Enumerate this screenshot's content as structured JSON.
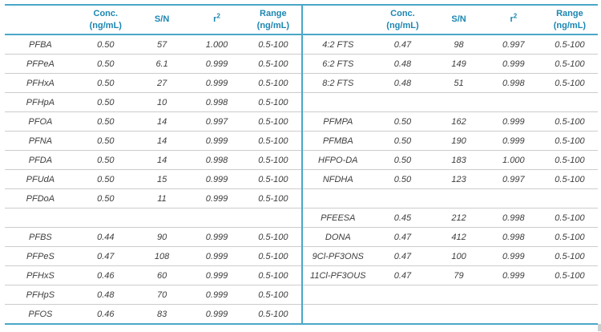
{
  "colors": {
    "accent_line": "#4aa7c8",
    "header_text": "#1c86b2",
    "row_line": "#cccccc",
    "body_text": "#3d3d3d"
  },
  "columns": [
    {
      "key": "compound",
      "label": ""
    },
    {
      "key": "conc",
      "label": "Conc.",
      "sub": "(ng/mL)"
    },
    {
      "key": "sn",
      "label": "S/N"
    },
    {
      "key": "r2",
      "label": "r",
      "sup": "2"
    },
    {
      "key": "range",
      "label": "Range",
      "sub": "(ng/mL)"
    }
  ],
  "left_table": {
    "rows": [
      [
        "PFBA",
        "0.50",
        "57",
        "1.000",
        "0.5-100"
      ],
      [
        "PFPeA",
        "0.50",
        "6.1",
        "0.999",
        "0.5-100"
      ],
      [
        "PFHxA",
        "0.50",
        "27",
        "0.999",
        "0.5-100"
      ],
      [
        "PFHpA",
        "0.50",
        "10",
        "0.998",
        "0.5-100"
      ],
      [
        "PFOA",
        "0.50",
        "14",
        "0.997",
        "0.5-100"
      ],
      [
        "PFNA",
        "0.50",
        "14",
        "0.999",
        "0.5-100"
      ],
      [
        "PFDA",
        "0.50",
        "14",
        "0.998",
        "0.5-100"
      ],
      [
        "PFUdA",
        "0.50",
        "15",
        "0.999",
        "0.5-100"
      ],
      [
        "PFDoA",
        "0.50",
        "11",
        "0.999",
        "0.5-100"
      ],
      [
        "",
        "",
        "",
        "",
        ""
      ],
      [
        "PFBS",
        "0.44",
        "90",
        "0.999",
        "0.5-100"
      ],
      [
        "PFPeS",
        "0.47",
        "108",
        "0.999",
        "0.5-100"
      ],
      [
        "PFHxS",
        "0.46",
        "60",
        "0.999",
        "0.5-100"
      ],
      [
        "PFHpS",
        "0.48",
        "70",
        "0.999",
        "0.5-100"
      ],
      [
        "PFOS",
        "0.46",
        "83",
        "0.999",
        "0.5-100"
      ]
    ]
  },
  "right_table": {
    "rows": [
      [
        "4:2 FTS",
        "0.47",
        "98",
        "0.997",
        "0.5-100"
      ],
      [
        "6:2 FTS",
        "0.48",
        "149",
        "0.999",
        "0.5-100"
      ],
      [
        "8:2 FTS",
        "0.48",
        "51",
        "0.998",
        "0.5-100"
      ],
      [
        "",
        "",
        "",
        "",
        ""
      ],
      [
        "PFMPA",
        "0.50",
        "162",
        "0.999",
        "0.5-100"
      ],
      [
        "PFMBA",
        "0.50",
        "190",
        "0.999",
        "0.5-100"
      ],
      [
        "HFPO-DA",
        "0.50",
        "183",
        "1.000",
        "0.5-100"
      ],
      [
        "NFDHA",
        "0.50",
        "123",
        "0.997",
        "0.5-100"
      ],
      [
        "",
        "",
        "",
        "",
        ""
      ],
      [
        "PFEESA",
        "0.45",
        "212",
        "0.998",
        "0.5-100"
      ],
      [
        "DONA",
        "0.47",
        "412",
        "0.998",
        "0.5-100"
      ],
      [
        "9Cl-PF3ONS",
        "0.47",
        "100",
        "0.999",
        "0.5-100"
      ],
      [
        "11Cl-PF3OUS",
        "0.47",
        "79",
        "0.999",
        "0.5-100"
      ],
      [
        "",
        "",
        "",
        "",
        ""
      ],
      [
        "",
        "",
        "",
        "",
        ""
      ]
    ]
  }
}
